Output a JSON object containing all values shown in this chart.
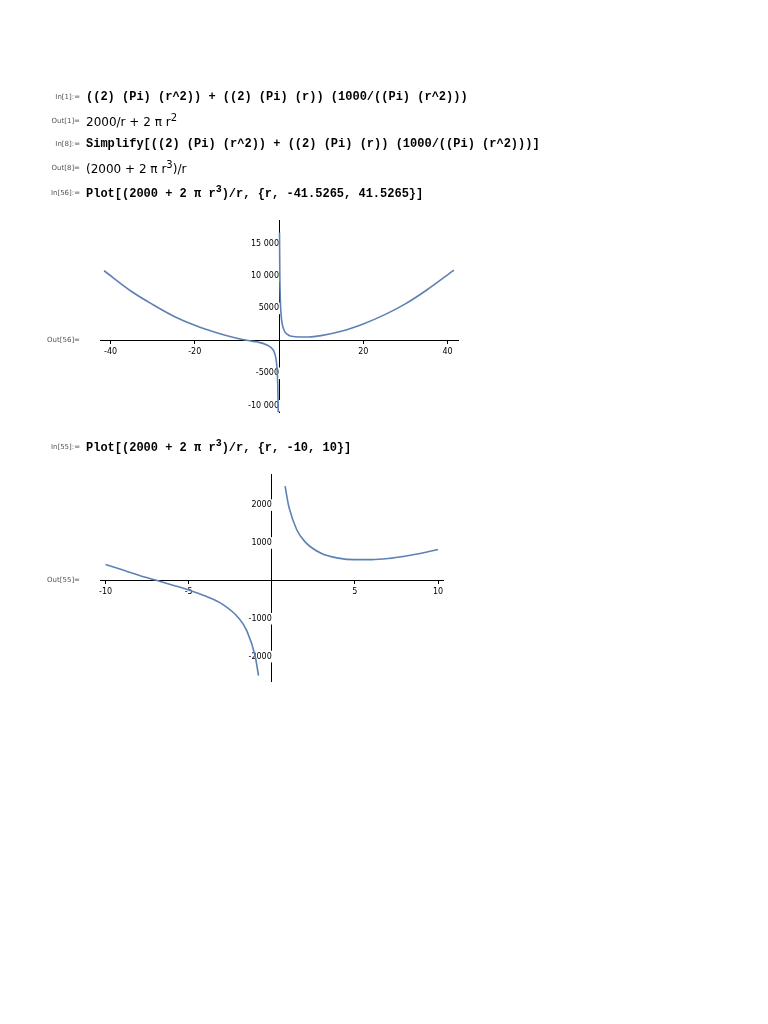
{
  "chart_data": [
    {
      "type": "line",
      "annotations": [
        "In[1]:=",
        "((2) (Pi) (r^2)) + ((2) (Pi) (r)) (1000/((Pi) (r^2)))",
        "Out[1]=",
        "2000/r + 2 π r$^{2}$",
        "In[8]:=",
        "Simplify[((2) (Pi) (r^2)) + ((2) (Pi) (r)) (1000/((Pi) (r^2)))]",
        "Out[8]=",
        "(2000 + 2 π r$^{3}$)/r",
        "In[56]:=",
        "Plot[(2000 + 2 π r$^{3}$)/r, {r, -41.5265, 41.5265}]",
        "Out[56]="
      ],
      "series": [
        {
          "color": "#5e81b5",
          "x": [
            -41.5265,
            -35,
            -30,
            -25,
            -20,
            -15,
            -10,
            -7,
            -5,
            -3,
            -2,
            -1,
            -0.5,
            -0.3,
            -0.2,
            -0.18
          ],
          "values": [
            10800,
            7600,
            5600,
            3800,
            2400,
            1300,
            400,
            0,
            -200,
            -600,
            -1000,
            -2000,
            -4000,
            -6700,
            -10000,
            -11000
          ]
        },
        {
          "color": "#5e81b5",
          "x": [
            0.12,
            0.2,
            0.3,
            0.5,
            1,
            2,
            3,
            5,
            7,
            10,
            15,
            20,
            25,
            30,
            35,
            41.5265
          ],
          "values": [
            16700,
            10000,
            6700,
            4000,
            2000,
            1000,
            700,
            600,
            600,
            800,
            1500,
            2600,
            4000,
            5700,
            7800,
            10900
          ]
        }
      ],
      "xlim": [
        -42.5,
        42.5
      ],
      "ylim": [
        -11000,
        18500
      ],
      "xticks": [
        -40,
        -20,
        20,
        40
      ],
      "yticks": [
        {
          "value": -10000,
          "label": "-10 000"
        },
        -5000,
        5000,
        {
          "value": 10000,
          "label": "10 000"
        },
        {
          "value": 15000,
          "label": "15 000"
        }
      ],
      "grid": false,
      "legend": false,
      "line_style": "solid",
      "marker": "none"
    },
    {
      "type": "line",
      "annotations": [
        "In[55]:=",
        "Plot[(2000 + 2 π r$^{3}$)/r, {r, -10, 10}]",
        "Out[55]="
      ],
      "series": [
        {
          "color": "#5e81b5",
          "x": [
            -10,
            -9,
            -8,
            -7,
            -6,
            -5,
            -4,
            -3,
            -2,
            -1.5,
            -1,
            -0.8
          ],
          "values": [
            430,
            290,
            150,
            20,
            -110,
            -240,
            -400,
            -610,
            -980,
            -1320,
            -1990,
            -2500
          ]
        },
        {
          "color": "#5e81b5",
          "x": [
            0.8,
            1,
            1.5,
            2,
            3,
            4,
            5,
            6,
            7,
            8,
            9,
            10
          ],
          "values": [
            2500,
            2010,
            1350,
            1030,
            720,
            600,
            560,
            560,
            590,
            650,
            730,
            830
          ]
        }
      ],
      "xlim": [
        -10.3,
        10.3
      ],
      "ylim": [
        -2650,
        2800
      ],
      "xticks": [
        -10,
        -5,
        5,
        10
      ],
      "yticks": [
        -2000,
        -1000,
        1000,
        2000
      ],
      "grid": false,
      "legend": false,
      "line_style": "solid",
      "marker": "none"
    }
  ]
}
